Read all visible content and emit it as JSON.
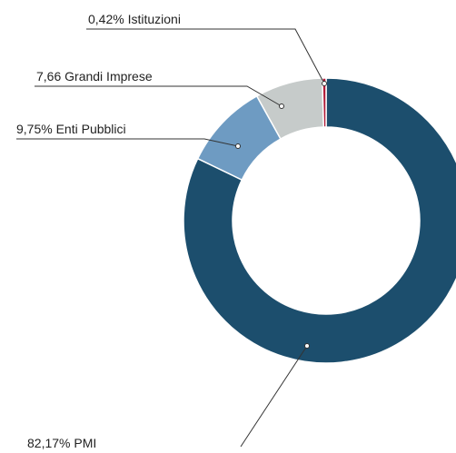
{
  "chart_data": {
    "type": "donut",
    "categories": [
      "PMI",
      "Enti Pubblici",
      "Grandi Imprese",
      "Istituzioni"
    ],
    "values": [
      82.17,
      9.75,
      7.66,
      0.42
    ],
    "value_labels": [
      "82,17%",
      "9,75%",
      "7,66",
      "0,42%"
    ],
    "colors": [
      "#1c4e6d",
      "#6e9bc2",
      "#c6cbca",
      "#b01c38"
    ]
  }
}
